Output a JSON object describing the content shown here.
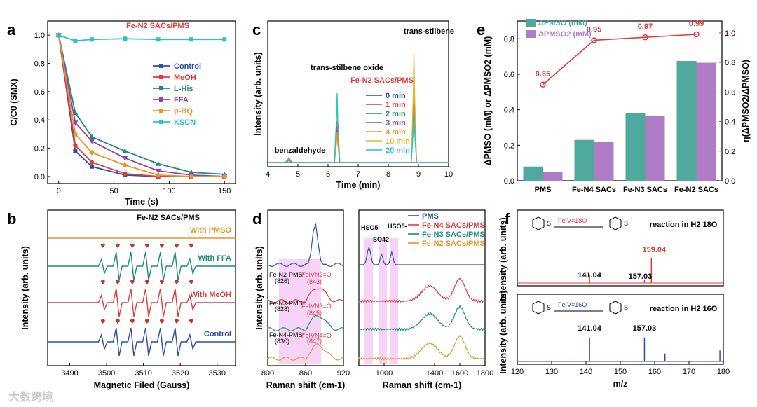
{
  "panels": {
    "a": {
      "letter": "a",
      "title": "Fe-N2 SACs/PMS",
      "xlabel": "Time (s)",
      "ylabel": "C/C0 (SMX)"
    },
    "b": {
      "letter": "b",
      "title": "Fe-N2 SACs/PMS",
      "xlabel": "Magnetic Filed (Gauss)",
      "ylabel": "Intensity (arb. units)",
      "traces": [
        "With PMSO",
        "With FFA",
        "With MeOH",
        "Control"
      ]
    },
    "c": {
      "letter": "c",
      "xlabel": "Time (min)",
      "ylabel": "Intensity (arb. units)",
      "legend_title": "Fe-N2 SACs/PMS",
      "annotations": [
        "trans-stilbene",
        "trans-stilbene oxide",
        "benzaldehyde"
      ]
    },
    "d": {
      "letter": "d",
      "xlabel": "Raman shift (cm-1)",
      "ylabel": "Intensity (arb. units)",
      "legend": [
        "PMS",
        "Fe-N4 SACs/PMS",
        "Fe-N3 SACs/PMS",
        "Fe-N2 SACs/PMS"
      ],
      "peak_labels": [
        "HSO5-",
        "SO42-",
        "HSO5-"
      ],
      "left_labels": [
        "Fe-N2-PMS*",
        "(826)",
        "FeIVN2=O",
        "(843)",
        "Fe-N3-PMS*",
        "(828)",
        "FeIVN3=O",
        "(845)",
        "Fe-N4-PMS*",
        "(830)",
        "FeIVN4=O",
        "(847)"
      ]
    },
    "e": {
      "letter": "e",
      "ylabel": "ΔPMSO (mM) or ΔPMSO2 (mM)",
      "ylabel_right": "η(ΔPMSO2/ΔPMSO)",
      "legend": [
        "ΔPMSO (mM)",
        "ΔPMSO2 (mM)"
      ]
    },
    "f": {
      "letter": "f",
      "xlabel": "m/z",
      "ylabel": "Intensity (arb. units)",
      "top_reaction": "reaction in H2 18O",
      "bottom_reaction": "reaction in H2 16O",
      "top_reagent": "FeIV=18O",
      "bottom_reagent": "FeIV=16O",
      "top_peaks_labels": [
        "141.04",
        "157.03",
        "159.04"
      ],
      "bottom_peaks_labels": [
        "141.04",
        "157.03"
      ]
    }
  },
  "watermark": "大数跨境",
  "colors": {
    "control": "#2b4fa0",
    "meoh": "#e03b3b",
    "lhis": "#1f8c7a",
    "ffa": "#8e44ad",
    "pbq": "#e8962a",
    "kscn": "#27c4c4",
    "teal": "#4fa99c",
    "purple": "#b07cc6",
    "red": "#e03b3b"
  },
  "chart_data": [
    {
      "type": "line",
      "panel": "a",
      "title": "Fe-N2 SACs/PMS",
      "xlabel": "Time (s)",
      "ylabel": "C/C0 (SMX)",
      "xlim": [
        -10,
        160
      ],
      "ylim": [
        -0.05,
        1.1
      ],
      "x_ticks": [
        0,
        50,
        100,
        150
      ],
      "y_ticks": [
        0.0,
        0.2,
        0.4,
        0.6,
        0.8,
        1.0
      ],
      "x": [
        0,
        15,
        30,
        60,
        90,
        120,
        150
      ],
      "series": [
        {
          "name": "Control",
          "values": [
            1.0,
            0.18,
            0.07,
            0.01,
            0.0,
            0.0,
            0.0
          ],
          "marker": "square"
        },
        {
          "name": "MeOH",
          "values": [
            1.0,
            0.22,
            0.1,
            0.02,
            0.0,
            0.0,
            0.0
          ],
          "marker": "circle"
        },
        {
          "name": "L-His",
          "values": [
            1.0,
            0.45,
            0.28,
            0.18,
            0.09,
            0.03,
            0.015
          ],
          "marker": "triangle-up"
        },
        {
          "name": "FFA",
          "values": [
            1.0,
            0.38,
            0.25,
            0.13,
            0.04,
            0.01,
            0.0
          ],
          "marker": "triangle-down"
        },
        {
          "name": "p-BQ",
          "values": [
            1.0,
            0.3,
            0.17,
            0.08,
            0.01,
            0.0,
            0.0
          ],
          "marker": "diamond"
        },
        {
          "name": "KSCN",
          "values": [
            1.0,
            0.96,
            0.97,
            0.975,
            0.97,
            0.97,
            0.97
          ],
          "marker": "square"
        }
      ]
    },
    {
      "type": "line",
      "panel": "b",
      "xlabel": "Magnetic Filed (Gauss)",
      "ylabel": "Intensity (arb. units)",
      "xlim": [
        3484,
        3535
      ],
      "x_ticks": [
        3490,
        3500,
        3510,
        3520,
        3530
      ],
      "series": [
        {
          "name": "With PMSO"
        },
        {
          "name": "With FFA"
        },
        {
          "name": "With MeOH"
        },
        {
          "name": "Control"
        }
      ]
    },
    {
      "type": "line",
      "panel": "c",
      "xlabel": "Time (min)",
      "ylabel": "Intensity (arb. units)",
      "xlim": [
        4,
        10
      ],
      "x_ticks": [
        4,
        5,
        6,
        7,
        8,
        9,
        10
      ],
      "peak_positions": [
        4.7,
        6.3,
        8.85
      ],
      "series": [
        {
          "name": "0 min",
          "heights": [
            0.0,
            0.0,
            0.0
          ]
        },
        {
          "name": "1 min",
          "heights": [
            0.0,
            0.0,
            0.0
          ]
        },
        {
          "name": "2 min",
          "heights": [
            0.02,
            0.33,
            0.58
          ]
        },
        {
          "name": "3 min",
          "heights": [
            0.03,
            0.28,
            0.49
          ]
        },
        {
          "name": "4 min",
          "heights": [
            0.03,
            0.24,
            0.42
          ]
        },
        {
          "name": "10 min",
          "heights": [
            0.04,
            0.5,
            0.87
          ]
        },
        {
          "name": "20 min",
          "heights": [
            0.04,
            0.55,
            0.4
          ]
        }
      ]
    },
    {
      "type": "line",
      "panel": "d",
      "xlabel": "Raman shift (cm-1)",
      "x_ticks_left": [
        800,
        860,
        920
      ],
      "x_ticks_right": [
        1000,
        1400,
        1600,
        1800
      ],
      "series": [
        {
          "name": "PMS"
        },
        {
          "name": "Fe-N4 SACs/PMS"
        },
        {
          "name": "Fe-N3 SACs/PMS"
        },
        {
          "name": "Fe-N2 SACs/PMS"
        }
      ]
    },
    {
      "type": "bar",
      "panel": "e",
      "categories": [
        "PMS",
        "Fe-N4 SACs",
        "Fe-N3 SACs",
        "Fe-N2 SACs"
      ],
      "ylim": [
        0,
        0.9
      ],
      "y_ticks": [
        0.0,
        0.2,
        0.4,
        0.6,
        0.8
      ],
      "y2lim": [
        0,
        1.08
      ],
      "y2_ticks": [
        0.0,
        0.2,
        0.4,
        0.6,
        0.8,
        1.0
      ],
      "series": [
        {
          "name": "ΔPMSO (mM)",
          "values": [
            0.08,
            0.23,
            0.38,
            0.675
          ]
        },
        {
          "name": "ΔPMSO2 (mM)",
          "values": [
            0.05,
            0.22,
            0.365,
            0.665
          ]
        },
        {
          "name": "η(ΔPMSO2/ΔPMSO)",
          "values": [
            0.65,
            0.95,
            0.97,
            0.99
          ],
          "axis": "right",
          "type": "line"
        }
      ],
      "line_labels": [
        "0.65",
        "0.95",
        "0.97",
        "0.99"
      ]
    },
    {
      "type": "bar",
      "panel": "f",
      "xlabel": "m/z",
      "xlim": [
        120,
        180
      ],
      "x_ticks": [
        120,
        130,
        140,
        150,
        160,
        170,
        180
      ],
      "series": [
        {
          "name": "reaction in H2 18O",
          "x": [
            141.04,
            157.03,
            159.04
          ],
          "values": [
            0.25,
            0.1,
            0.7
          ]
        },
        {
          "name": "reaction in H2 16O",
          "x": [
            141.04,
            157.03,
            163,
            179
          ],
          "values": [
            0.75,
            0.75,
            0.25,
            0.35
          ]
        }
      ]
    }
  ]
}
